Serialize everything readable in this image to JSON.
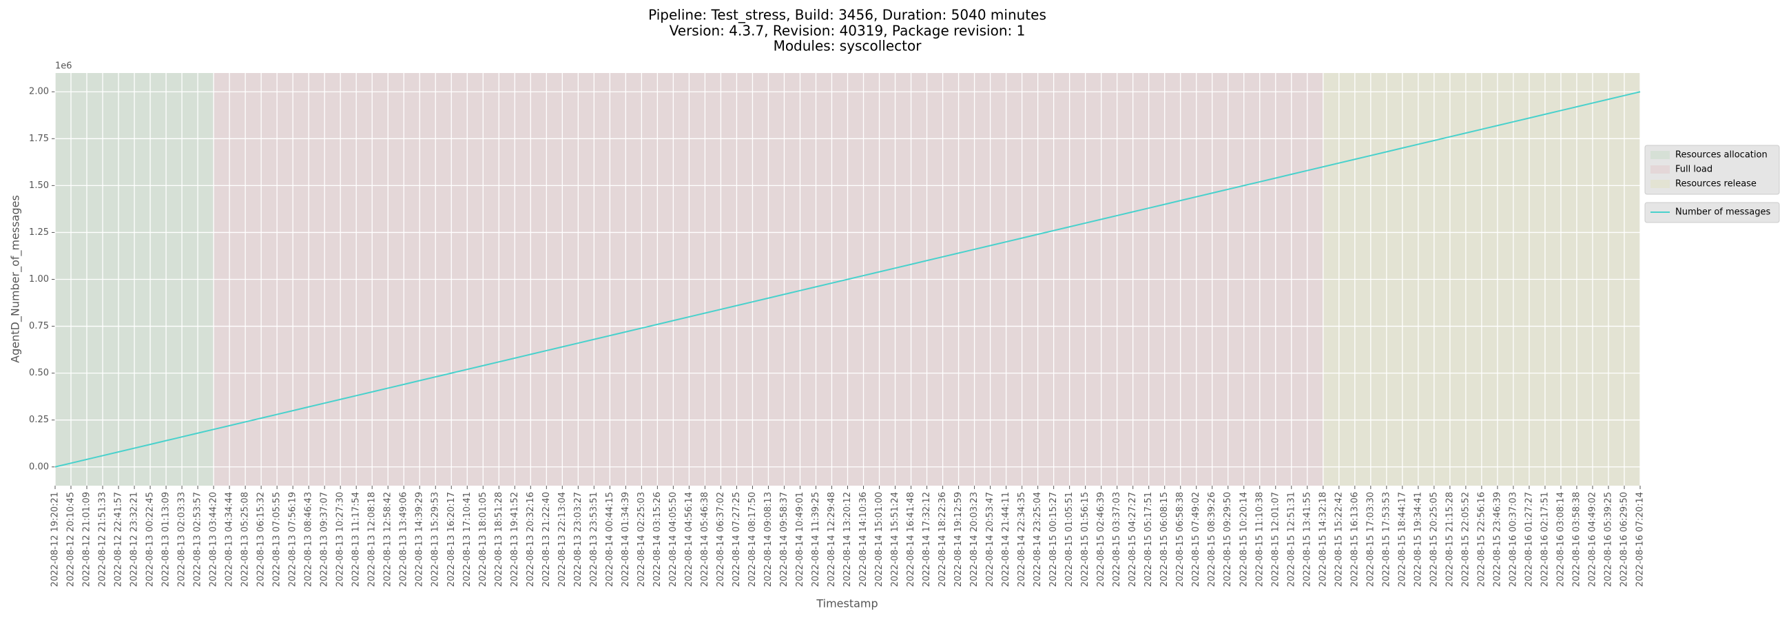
{
  "chart_data": {
    "type": "line",
    "title": [
      "Pipeline: Test_stress, Build: 3456, Duration: 5040 minutes",
      "Version: 4.3.7, Revision: 40319, Package revision: 1",
      "Modules: syscollector"
    ],
    "xlabel": "Timestamp",
    "ylabel": "AgentD_Number_of_messages",
    "y_offset_label": "1e6",
    "x": [
      "2022-08-12 19:20:21",
      "2022-08-12 20:10:45",
      "2022-08-12 21:01:09",
      "2022-08-12 21:51:33",
      "2022-08-12 22:41:57",
      "2022-08-12 23:32:21",
      "2022-08-13 00:22:45",
      "2022-08-13 01:13:09",
      "2022-08-13 02:03:33",
      "2022-08-13 02:53:57",
      "2022-08-13 03:44:20",
      "2022-08-13 04:34:44",
      "2022-08-13 05:25:08",
      "2022-08-13 06:15:32",
      "2022-08-13 07:05:55",
      "2022-08-13 07:56:19",
      "2022-08-13 08:46:43",
      "2022-08-13 09:37:07",
      "2022-08-13 10:27:30",
      "2022-08-13 11:17:54",
      "2022-08-13 12:08:18",
      "2022-08-13 12:58:42",
      "2022-08-13 13:49:06",
      "2022-08-13 14:39:29",
      "2022-08-13 15:29:53",
      "2022-08-13 16:20:17",
      "2022-08-13 17:10:41",
      "2022-08-13 18:01:05",
      "2022-08-13 18:51:28",
      "2022-08-13 19:41:52",
      "2022-08-13 20:32:16",
      "2022-08-13 21:22:40",
      "2022-08-13 22:13:04",
      "2022-08-13 23:03:27",
      "2022-08-13 23:53:51",
      "2022-08-14 00:44:15",
      "2022-08-14 01:34:39",
      "2022-08-14 02:25:03",
      "2022-08-14 03:15:26",
      "2022-08-14 04:05:50",
      "2022-08-14 04:56:14",
      "2022-08-14 05:46:38",
      "2022-08-14 06:37:02",
      "2022-08-14 07:27:25",
      "2022-08-14 08:17:50",
      "2022-08-14 09:08:13",
      "2022-08-14 09:58:37",
      "2022-08-14 10:49:01",
      "2022-08-14 11:39:25",
      "2022-08-14 12:29:48",
      "2022-08-14 13:20:12",
      "2022-08-14 14:10:36",
      "2022-08-14 15:01:00",
      "2022-08-14 15:51:24",
      "2022-08-14 16:41:48",
      "2022-08-14 17:32:12",
      "2022-08-14 18:22:36",
      "2022-08-14 19:12:59",
      "2022-08-14 20:03:23",
      "2022-08-14 20:53:47",
      "2022-08-14 21:44:11",
      "2022-08-14 22:34:35",
      "2022-08-14 23:25:04",
      "2022-08-15 00:15:27",
      "2022-08-15 01:05:51",
      "2022-08-15 01:56:15",
      "2022-08-15 02:46:39",
      "2022-08-15 03:37:03",
      "2022-08-15 04:27:27",
      "2022-08-15 05:17:51",
      "2022-08-15 06:08:15",
      "2022-08-15 06:58:38",
      "2022-08-15 07:49:02",
      "2022-08-15 08:39:26",
      "2022-08-15 09:29:50",
      "2022-08-15 10:20:14",
      "2022-08-15 11:10:38",
      "2022-08-15 12:01:07",
      "2022-08-15 12:51:31",
      "2022-08-15 13:41:55",
      "2022-08-15 14:32:18",
      "2022-08-15 15:22:42",
      "2022-08-15 16:13:06",
      "2022-08-15 17:03:30",
      "2022-08-15 17:53:53",
      "2022-08-15 18:44:17",
      "2022-08-15 19:34:41",
      "2022-08-15 20:25:05",
      "2022-08-15 21:15:28",
      "2022-08-15 22:05:52",
      "2022-08-15 22:56:16",
      "2022-08-15 23:46:39",
      "2022-08-16 00:37:03",
      "2022-08-16 01:27:27",
      "2022-08-16 02:17:51",
      "2022-08-16 03:08:14",
      "2022-08-16 03:58:38",
      "2022-08-16 04:49:02",
      "2022-08-16 05:39:25",
      "2022-08-16 06:29:50",
      "2022-08-16 07:20:14"
    ],
    "series": [
      {
        "name": "Number of messages",
        "color": "#48d1cc",
        "values": [
          0,
          20000,
          40000,
          60000,
          80000,
          100000,
          120000,
          140000,
          160000,
          180000,
          200000,
          220000,
          240000,
          260000,
          280000,
          300000,
          320000,
          340000,
          360000,
          380000,
          400000,
          420000,
          440000,
          460000,
          480000,
          500000,
          520000,
          540000,
          560000,
          580000,
          600000,
          620000,
          640000,
          660000,
          680000,
          700000,
          720000,
          740000,
          760000,
          780000,
          800000,
          820000,
          840000,
          860000,
          880000,
          900000,
          920000,
          940000,
          960000,
          980000,
          1000000,
          1020000,
          1040000,
          1060000,
          1080000,
          1100000,
          1120000,
          1140000,
          1160000,
          1180000,
          1200000,
          1220000,
          1240000,
          1260000,
          1280000,
          1300000,
          1320000,
          1340000,
          1360000,
          1380000,
          1400000,
          1420000,
          1440000,
          1460000,
          1480000,
          1500000,
          1520000,
          1540000,
          1560000,
          1580000,
          1600000,
          1620000,
          1640000,
          1660000,
          1680000,
          1700000,
          1720000,
          1740000,
          1760000,
          1780000,
          1800000,
          1820000,
          1840000,
          1860000,
          1880000,
          1900000,
          1920000,
          1940000,
          1960000,
          1980000,
          2000000
        ]
      }
    ],
    "phases": [
      {
        "name": "Resources allocation",
        "color": "#d6e0d6",
        "start": "2022-08-12 19:20:21",
        "end": "2022-08-13 03:44:20"
      },
      {
        "name": "Full load",
        "color": "#e4d7d8",
        "start": "2022-08-13 03:44:20",
        "end": "2022-08-15 14:32:18"
      },
      {
        "name": "Resources release",
        "color": "#e3e3d3",
        "start": "2022-08-15 14:32:18",
        "end": "2022-08-16 07:20:14"
      }
    ],
    "ylim": [
      -100000,
      2100000
    ],
    "yticks": [
      {
        "value": 0,
        "label": "0.00"
      },
      {
        "value": 250000,
        "label": "0.25"
      },
      {
        "value": 500000,
        "label": "0.50"
      },
      {
        "value": 750000,
        "label": "0.75"
      },
      {
        "value": 1000000,
        "label": "1.00"
      },
      {
        "value": 1250000,
        "label": "1.25"
      },
      {
        "value": 1500000,
        "label": "1.50"
      },
      {
        "value": 1750000,
        "label": "1.75"
      },
      {
        "value": 2000000,
        "label": "2.00"
      }
    ],
    "grid": true,
    "legend": "right"
  }
}
